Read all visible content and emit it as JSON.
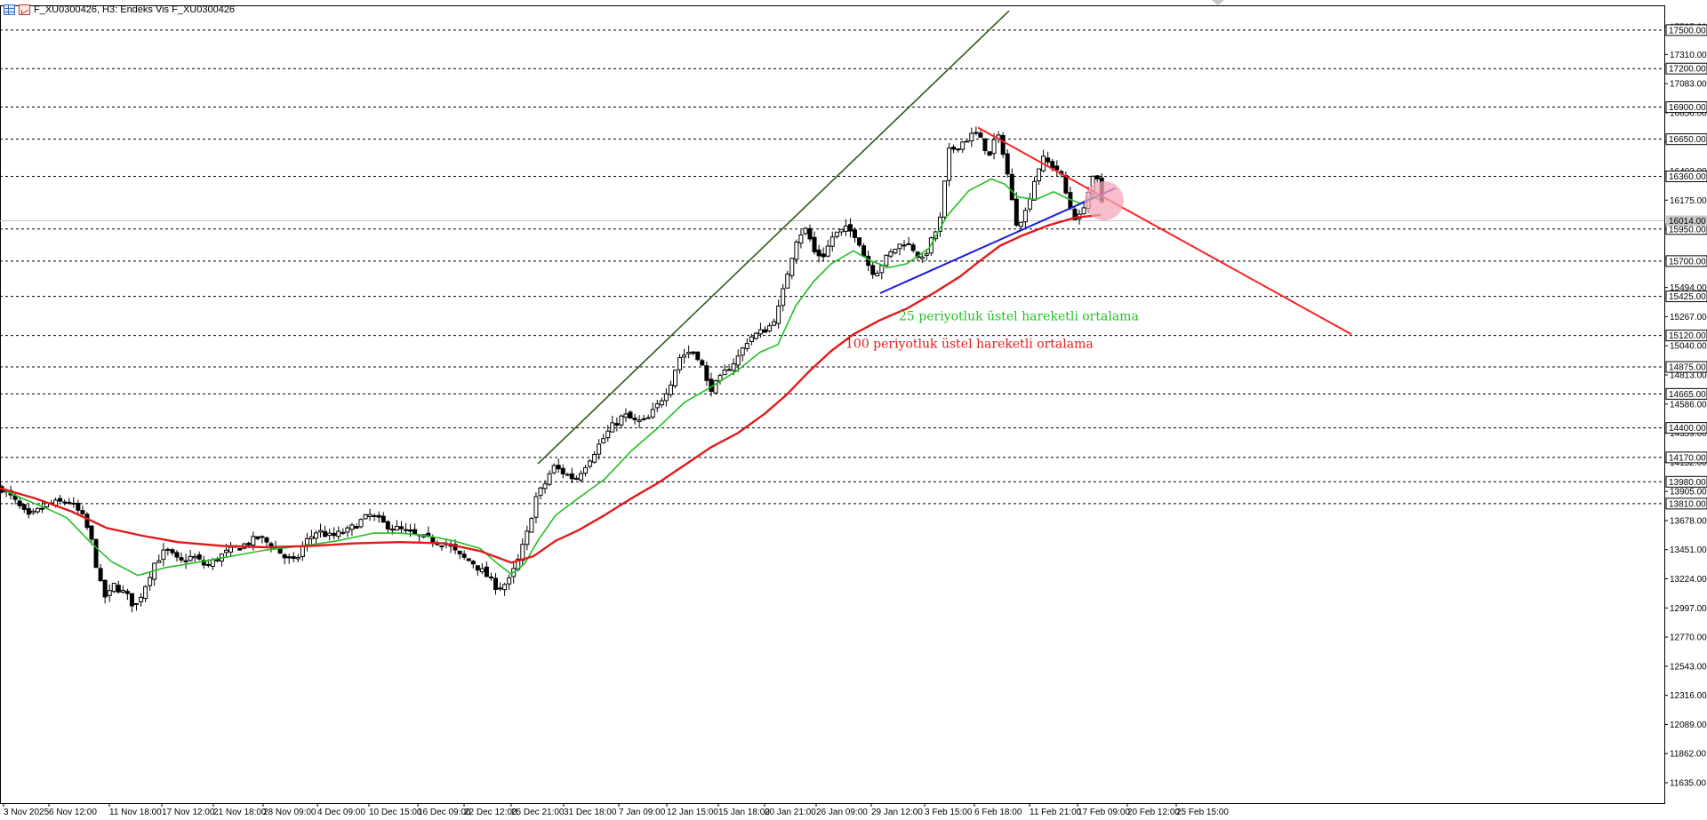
{
  "window": {
    "title": "F_XU0300426, H3:  Endeks Vis F_XU0300426",
    "icons": [
      "grid-icon",
      "chart-icon"
    ]
  },
  "chart_data": {
    "type": "candlestick",
    "symbol": "F_XU0300426",
    "timeframe": "H3",
    "ylim": [
      11500,
      17600
    ],
    "price_labels": [
      "17527.00",
      "17310.00",
      "17083.00",
      "16856.00",
      "16629.00",
      "16402.00",
      "16175.00",
      "15948.00",
      "15721.00",
      "15494.00",
      "15267.00",
      "15040.00",
      "14813.00",
      "14586.00",
      "14359.00",
      "14132.00",
      "13905.00",
      "13678.00",
      "13451.00",
      "13224.00",
      "12997.00",
      "12770.00",
      "12543.00",
      "12316.00",
      "12089.00",
      "11862.00",
      "11635.00"
    ],
    "levels": [
      17500,
      17200,
      16900,
      16650,
      16360,
      15950,
      15700,
      15425,
      15120,
      14875,
      14665,
      14400,
      14170,
      13980,
      13810
    ],
    "current_price_label": "16014.00",
    "x_labels": [
      "3 Nov 2025",
      "6 Nov 12:00",
      "11 Nov 18:00",
      "17 Nov 12:00",
      "21 Nov 18:00",
      "28 Nov 09:00",
      "4 Dec 09:00",
      "10 Dec 15:00",
      "16 Dec 09:00",
      "22 Dec 12:00",
      "25 Dec 21:00",
      "31 Dec 18:00",
      "7 Jan 09:00",
      "12 Jan 15:00",
      "15 Jan 18:00",
      "20 Jan 21:00",
      "26 Jan 09:00",
      "29 Jan 12:00",
      "3 Feb 15:00",
      "6 Feb 18:00",
      "11 Feb 21:00",
      "17 Feb 09:00",
      "20 Feb 12:00",
      "25 Feb 15:00"
    ],
    "close_path": [
      [
        0,
        13930
      ],
      [
        12,
        13850
      ],
      [
        30,
        13700
      ],
      [
        50,
        13800
      ],
      [
        75,
        13830
      ],
      [
        90,
        13720
      ],
      [
        100,
        13550
      ],
      [
        110,
        13200
      ],
      [
        118,
        13050
      ],
      [
        125,
        13180
      ],
      [
        140,
        13100
      ],
      [
        150,
        13000
      ],
      [
        160,
        13150
      ],
      [
        172,
        13350
      ],
      [
        185,
        13450
      ],
      [
        200,
        13350
      ],
      [
        215,
        13400
      ],
      [
        230,
        13320
      ],
      [
        250,
        13420
      ],
      [
        270,
        13480
      ],
      [
        290,
        13550
      ],
      [
        300,
        13500
      ],
      [
        310,
        13450
      ],
      [
        320,
        13380
      ],
      [
        330,
        13350
      ],
      [
        340,
        13500
      ],
      [
        355,
        13600
      ],
      [
        370,
        13550
      ],
      [
        390,
        13600
      ],
      [
        405,
        13680
      ],
      [
        415,
        13720
      ],
      [
        430,
        13650
      ],
      [
        450,
        13600
      ],
      [
        470,
        13550
      ],
      [
        485,
        13520
      ],
      [
        500,
        13500
      ],
      [
        515,
        13400
      ],
      [
        530,
        13350
      ],
      [
        545,
        13250
      ],
      [
        558,
        13150
      ],
      [
        570,
        13200
      ],
      [
        580,
        13350
      ],
      [
        592,
        13600
      ],
      [
        600,
        13850
      ],
      [
        610,
        13950
      ],
      [
        620,
        14100
      ],
      [
        632,
        14050
      ],
      [
        645,
        14000
      ],
      [
        660,
        14150
      ],
      [
        670,
        14250
      ],
      [
        685,
        14400
      ],
      [
        700,
        14500
      ],
      [
        712,
        14450
      ],
      [
        725,
        14450
      ],
      [
        740,
        14600
      ],
      [
        752,
        14750
      ],
      [
        762,
        14950
      ],
      [
        775,
        15000
      ],
      [
        785,
        14950
      ],
      [
        795,
        14700
      ],
      [
        805,
        14750
      ],
      [
        815,
        14850
      ],
      [
        828,
        14950
      ],
      [
        840,
        15100
      ],
      [
        855,
        15150
      ],
      [
        865,
        15200
      ],
      [
        875,
        15350
      ],
      [
        885,
        15650
      ],
      [
        895,
        15900
      ],
      [
        905,
        15950
      ],
      [
        915,
        15750
      ],
      [
        925,
        15750
      ],
      [
        935,
        15900
      ],
      [
        950,
        15950
      ],
      [
        962,
        15900
      ],
      [
        972,
        15700
      ],
      [
        982,
        15600
      ],
      [
        992,
        15700
      ],
      [
        1005,
        15800
      ],
      [
        1015,
        15850
      ],
      [
        1025,
        15800
      ],
      [
        1035,
        15700
      ],
      [
        1045,
        15850
      ],
      [
        1055,
        16000
      ],
      [
        1065,
        16550
      ],
      [
        1075,
        16600
      ],
      [
        1085,
        16650
      ],
      [
        1095,
        16700
      ],
      [
        1105,
        16600
      ],
      [
        1112,
        16500
      ],
      [
        1118,
        16700
      ],
      [
        1125,
        16600
      ],
      [
        1132,
        16350
      ],
      [
        1140,
        16000
      ],
      [
        1150,
        16050
      ],
      [
        1160,
        16300
      ],
      [
        1170,
        16500
      ],
      [
        1180,
        16450
      ],
      [
        1190,
        16400
      ],
      [
        1200,
        16150
      ],
      [
        1210,
        16000
      ],
      [
        1220,
        16200
      ],
      [
        1228,
        16350
      ],
      [
        1235,
        16300
      ],
      [
        1240,
        16000
      ]
    ],
    "series": [
      {
        "name": "25 periyotluk üstel hareketli ortalama",
        "color": "#22c022",
        "points": [
          [
            0,
            13930
          ],
          [
            25,
            13850
          ],
          [
            50,
            13780
          ],
          [
            75,
            13700
          ],
          [
            100,
            13520
          ],
          [
            125,
            13360
          ],
          [
            155,
            13250
          ],
          [
            185,
            13310
          ],
          [
            220,
            13350
          ],
          [
            260,
            13400
          ],
          [
            300,
            13450
          ],
          [
            340,
            13480
          ],
          [
            380,
            13520
          ],
          [
            420,
            13580
          ],
          [
            450,
            13580
          ],
          [
            480,
            13560
          ],
          [
            510,
            13520
          ],
          [
            540,
            13460
          ],
          [
            560,
            13340
          ],
          [
            575,
            13260
          ],
          [
            590,
            13340
          ],
          [
            605,
            13520
          ],
          [
            625,
            13720
          ],
          [
            650,
            13850
          ],
          [
            680,
            14000
          ],
          [
            710,
            14220
          ],
          [
            740,
            14400
          ],
          [
            770,
            14600
          ],
          [
            800,
            14720
          ],
          [
            830,
            14850
          ],
          [
            855,
            14990
          ],
          [
            875,
            15050
          ],
          [
            895,
            15350
          ],
          [
            915,
            15540
          ],
          [
            935,
            15680
          ],
          [
            960,
            15780
          ],
          [
            980,
            15700
          ],
          [
            1000,
            15650
          ],
          [
            1020,
            15680
          ],
          [
            1045,
            15800
          ],
          [
            1065,
            16050
          ],
          [
            1090,
            16250
          ],
          [
            1115,
            16340
          ],
          [
            1130,
            16300
          ],
          [
            1145,
            16200
          ],
          [
            1165,
            16180
          ],
          [
            1185,
            16240
          ],
          [
            1200,
            16190
          ],
          [
            1215,
            16150
          ],
          [
            1230,
            16200
          ],
          [
            1238,
            16170
          ]
        ]
      },
      {
        "name": "100 periyotluk üstel hareketli ortalama",
        "color": "#e01b1b",
        "points": [
          [
            0,
            13930
          ],
          [
            40,
            13850
          ],
          [
            80,
            13750
          ],
          [
            120,
            13620
          ],
          [
            160,
            13560
          ],
          [
            200,
            13510
          ],
          [
            250,
            13480
          ],
          [
            300,
            13470
          ],
          [
            350,
            13480
          ],
          [
            400,
            13500
          ],
          [
            450,
            13510
          ],
          [
            500,
            13500
          ],
          [
            540,
            13440
          ],
          [
            575,
            13350
          ],
          [
            600,
            13400
          ],
          [
            625,
            13520
          ],
          [
            650,
            13600
          ],
          [
            680,
            13720
          ],
          [
            710,
            13850
          ],
          [
            740,
            13970
          ],
          [
            770,
            14110
          ],
          [
            800,
            14250
          ],
          [
            830,
            14360
          ],
          [
            860,
            14510
          ],
          [
            885,
            14660
          ],
          [
            910,
            14840
          ],
          [
            935,
            15000
          ],
          [
            960,
            15130
          ],
          [
            990,
            15240
          ],
          [
            1020,
            15330
          ],
          [
            1050,
            15450
          ],
          [
            1080,
            15580
          ],
          [
            1100,
            15690
          ],
          [
            1125,
            15820
          ],
          [
            1150,
            15900
          ],
          [
            1180,
            15980
          ],
          [
            1210,
            16040
          ],
          [
            1238,
            16060
          ]
        ]
      }
    ],
    "trendlines": [
      {
        "color": "#2f5a1a",
        "from": [
          605,
          14120
        ],
        "to": [
          1135,
          17650
        ]
      },
      {
        "color": "#ff2020",
        "from": [
          1100,
          16740
        ],
        "to": [
          1520,
          15130
        ]
      },
      {
        "color": "#1a1ae0",
        "from": [
          990,
          15450
        ],
        "to": [
          1255,
          16270
        ]
      }
    ],
    "highlight_circle": {
      "color": "#f4a7b9",
      "center": [
        1237,
        16170
      ]
    },
    "annotations": [
      {
        "text": "25 periyotluk üstel hareketli ortalama",
        "color": "#22c022",
        "at": [
          1011,
          15240
        ]
      },
      {
        "text": "100 periyotluk üstel hareketli ortalama",
        "color": "#e01b1b",
        "at": [
          951,
          15025
        ]
      }
    ]
  }
}
